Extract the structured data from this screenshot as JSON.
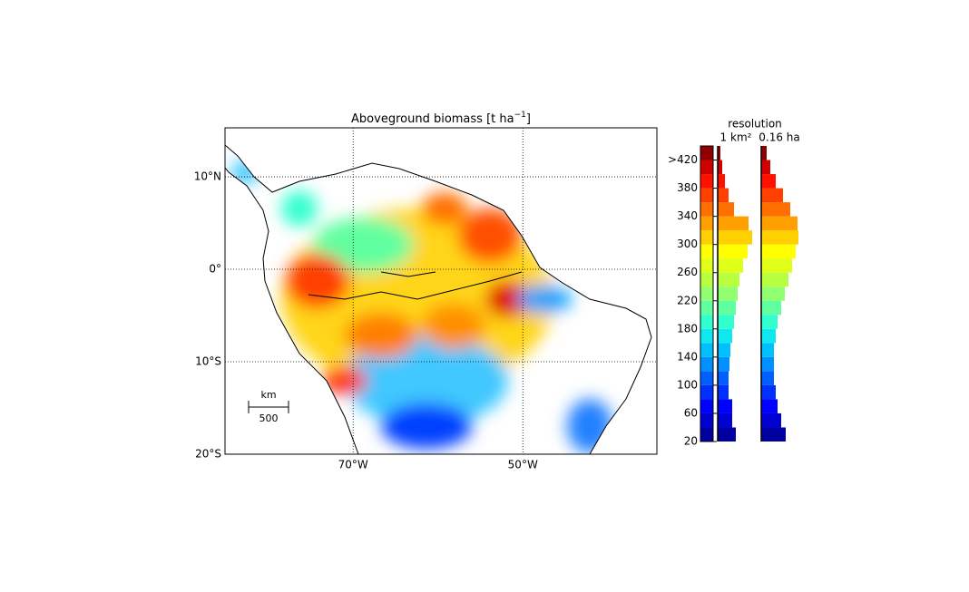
{
  "map": {
    "title": "Aboveground biomass [t ha",
    "title_sup": "−1",
    "title_end": "]",
    "xlim": [
      -85.1,
      -34.2
    ],
    "ylim": [
      -20,
      15.3
    ],
    "lat_ticks": [
      {
        "value": 10,
        "label": "10°N"
      },
      {
        "value": 0,
        "label": "0°"
      },
      {
        "value": -10,
        "label": "10°S"
      },
      {
        "value": -20,
        "label": "20°S"
      }
    ],
    "lon_ticks": [
      {
        "value": -70,
        "label": "70°W"
      },
      {
        "value": -50,
        "label": "50°W"
      }
    ],
    "scale_unit": "km",
    "scale_label": "500"
  },
  "colorbar": {
    "clim": [
      20,
      440
    ],
    "bins": [
      20,
      40,
      60,
      80,
      100,
      120,
      140,
      160,
      180,
      200,
      220,
      240,
      260,
      280,
      300,
      320,
      340,
      360,
      380,
      400,
      420,
      440
    ],
    "colors": [
      "#0000a0",
      "#0000d0",
      "#0000ff",
      "#0030ff",
      "#0060ff",
      "#0090ff",
      "#00c0ff",
      "#10e8f0",
      "#30ffd0",
      "#60ffa0",
      "#90ff70",
      "#b8ff40",
      "#e0ff18",
      "#ffff00",
      "#ffd000",
      "#ffa000",
      "#ff7000",
      "#ff4000",
      "#ff1000",
      "#d00000",
      "#900000"
    ],
    "ticks": [
      20,
      60,
      100,
      140,
      180,
      220,
      260,
      300,
      340,
      380,
      {
        "value": 420,
        "label": ">420"
      }
    ]
  },
  "histograms": {
    "heading": "resolution",
    "series": [
      {
        "name": "1 km²",
        "values": [
          20,
          16,
          16,
          12,
          12,
          13,
          14,
          16,
          18,
          20,
          22,
          24,
          28,
          33,
          38,
          34,
          18,
          12,
          8,
          5,
          3
        ]
      },
      {
        "name": "0.16 ha",
        "values": [
          27,
          22,
          18,
          16,
          14,
          14,
          14,
          16,
          18,
          22,
          26,
          30,
          34,
          38,
          41,
          40,
          32,
          24,
          16,
          10,
          6
        ]
      }
    ]
  }
}
